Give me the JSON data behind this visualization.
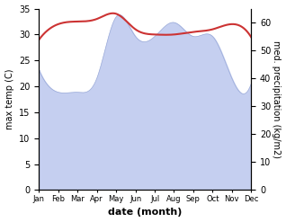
{
  "months": [
    "Jan",
    "Feb",
    "Mar",
    "Apr",
    "May",
    "Jun",
    "Jul",
    "Aug",
    "Sep",
    "Oct",
    "Nov",
    "Dec"
  ],
  "temperature": [
    29.0,
    32.0,
    32.5,
    33.0,
    34.0,
    31.0,
    30.0,
    30.0,
    30.5,
    31.0,
    32.0,
    29.5
  ],
  "precipitation": [
    43,
    35,
    35,
    40,
    62,
    55,
    55,
    60,
    55,
    55,
    40,
    38
  ],
  "temp_color": "#cc3333",
  "precip_color": "#c5cff0",
  "precip_edge_color": "#9aaad8",
  "temp_ylim": [
    0,
    35
  ],
  "precip_ylim": [
    0,
    65
  ],
  "temp_yticks": [
    0,
    5,
    10,
    15,
    20,
    25,
    30,
    35
  ],
  "precip_yticks": [
    0,
    10,
    20,
    30,
    40,
    50,
    60
  ],
  "xlabel": "date (month)",
  "ylabel_left": "max temp (C)",
  "ylabel_right": "med. precipitation (kg/m2)",
  "bg_color": "#ffffff",
  "figsize": [
    3.18,
    2.47
  ],
  "dpi": 100
}
